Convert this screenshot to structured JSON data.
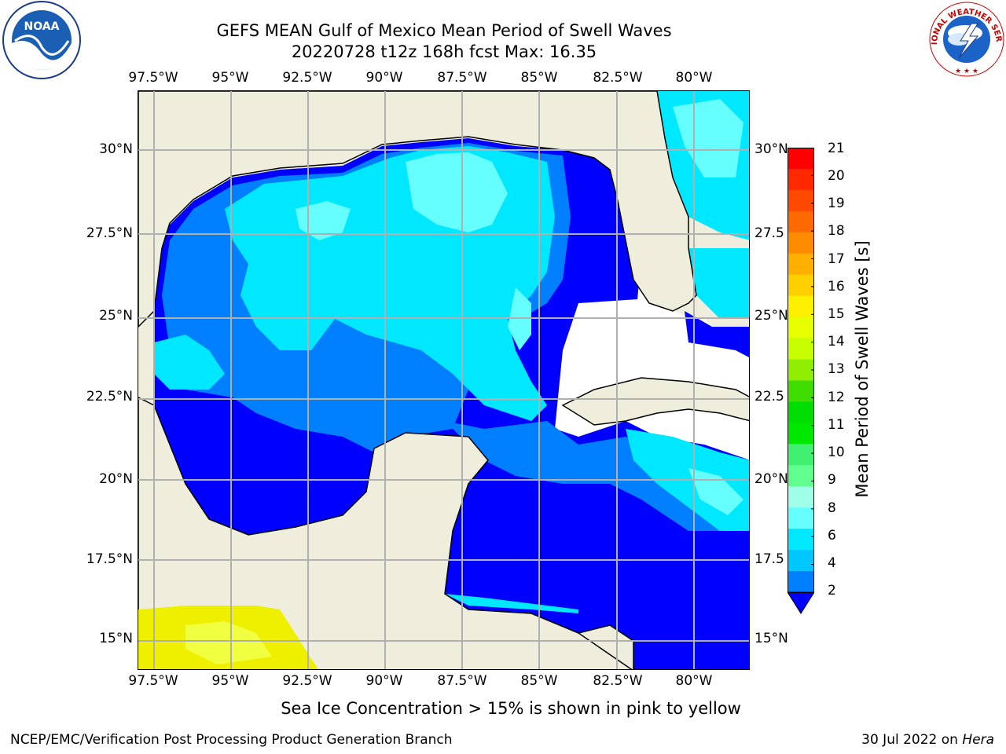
{
  "title": {
    "line1": "GEFS MEAN Gulf of Mexico Mean Period of Swell Waves",
    "line2": "20220728 t12z 168h fcst   Max: 16.35"
  },
  "logos": {
    "left": "NOAA",
    "right": "NATIONAL WEATHER SERVICE"
  },
  "axes": {
    "lon_labels": [
      "97.5°W",
      "95°W",
      "92.5°W",
      "90°W",
      "87.5°W",
      "85°W",
      "82.5°W",
      "80°W"
    ],
    "lat_labels_left": [
      "30°N",
      "27.5°N",
      "25°N",
      "22.5°N",
      "20°N",
      "17.5°N",
      "15°N"
    ],
    "lat_labels_right": [
      "30°N",
      "27.5",
      "25°N",
      "22.5",
      "20°N",
      "17.5",
      "15°N"
    ],
    "lon_range": [
      -98,
      -79
    ],
    "lat_range": [
      14,
      31.6
    ]
  },
  "colorbar": {
    "label": "Mean Period of Swell Waves [s]",
    "ticks": [
      "21",
      "20",
      "19",
      "18",
      "17",
      "16",
      "15",
      "14",
      "13",
      "12",
      "11",
      "10",
      "9",
      "8",
      "6",
      "4",
      "2"
    ],
    "colors": [
      "#ff0000",
      "#ff2800",
      "#ff4800",
      "#ff6a00",
      "#ff8c00",
      "#ffb000",
      "#ffd000",
      "#fff000",
      "#e8ff00",
      "#c8ff00",
      "#90ee00",
      "#40dd00",
      "#00dd00",
      "#00e800",
      "#40f070",
      "#60ff90",
      "#a0ffe8",
      "#66ffff",
      "#00e8ff",
      "#00c8ff",
      "#0080ff",
      "#0000ff"
    ]
  },
  "map": {
    "land_color": "#efeedd",
    "no_data_color": "#ffffff",
    "period_colors": {
      "2-4": "#0000ff",
      "4-6": "#0080ff",
      "6-8": "#00e8ff",
      "8-9": "#66ffff"
    },
    "sea_ice_colors": [
      "#eef000",
      "#f0ff40"
    ]
  },
  "note": "Sea Ice Concentration > 15% is shown in pink to yellow",
  "footer": {
    "left": "NCEP/EMC/Verification Post Processing Product Generation Branch",
    "right_date": "30 Jul 2022 on ",
    "right_host": "Hera"
  }
}
